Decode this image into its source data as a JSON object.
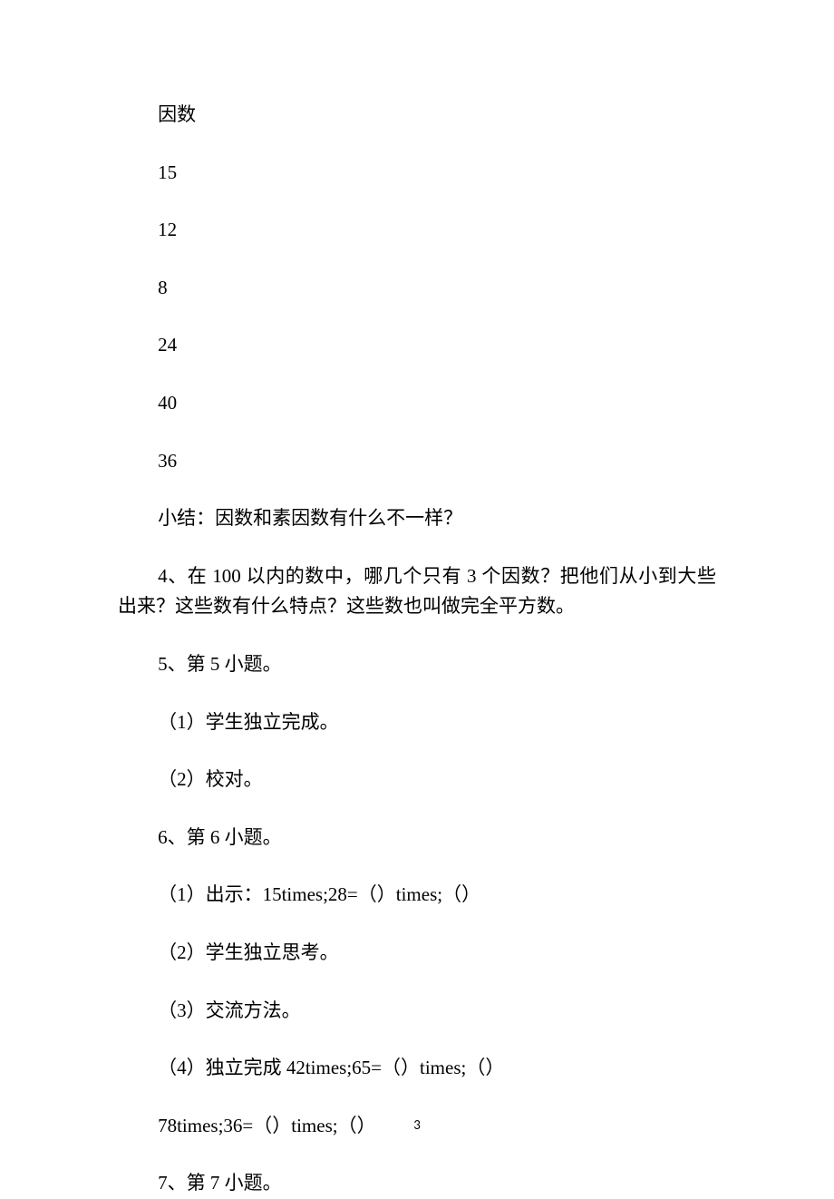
{
  "lines": [
    {
      "text": "因数",
      "indent": true
    },
    {
      "text": "15",
      "indent": true
    },
    {
      "text": "12",
      "indent": true
    },
    {
      "text": "8",
      "indent": true
    },
    {
      "text": "24",
      "indent": true
    },
    {
      "text": "40",
      "indent": true
    },
    {
      "text": "36",
      "indent": true
    },
    {
      "text": "小结：因数和素因数有什么不一样？",
      "indent": true
    },
    {
      "text": "4、在 100 以内的数中，哪几个只有 3 个因数？把他们从小到大些出来？这些数有什么特点？这些数也叫做完全平方数。",
      "indent": true,
      "wrap": true
    },
    {
      "text": "5、第 5 小题。",
      "indent": true
    },
    {
      "text": "（1）学生独立完成。",
      "indent": true
    },
    {
      "text": "（2）校对。",
      "indent": true
    },
    {
      "text": "6、第 6 小题。",
      "indent": true
    },
    {
      "text": "（1）出示：15times;28=（）times;（）",
      "indent": true
    },
    {
      "text": "（2）学生独立思考。",
      "indent": true
    },
    {
      "text": "（3）交流方法。",
      "indent": true
    },
    {
      "text": "（4）独立完成 42times;65=（）times;（）",
      "indent": true
    },
    {
      "text": "78times;36=（）times;（）",
      "indent": true
    },
    {
      "text": "7、第 7 小题。",
      "indent": true
    }
  ],
  "page_number": "3"
}
